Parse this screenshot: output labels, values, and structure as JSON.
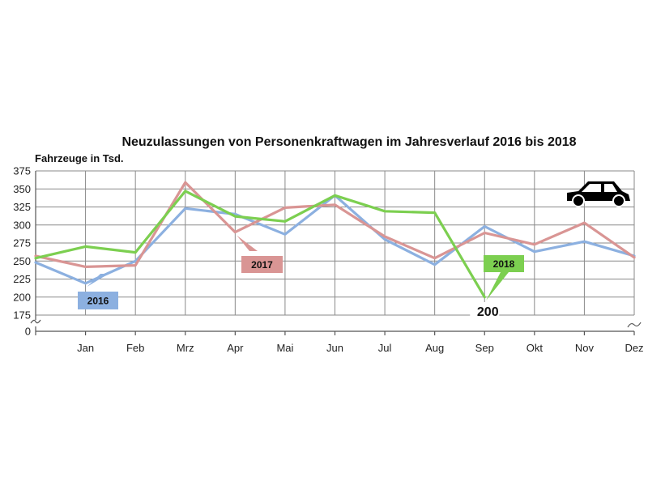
{
  "chart_data": {
    "type": "line",
    "title": "Neuzulassungen von Personenkraftwagen im Jahresverlauf 2016 bis 2018",
    "ylabel": "Fahrzeuge in Tsd.",
    "xlabel": "",
    "categories": [
      "",
      "Jan",
      "Feb",
      "Mrz",
      "Apr",
      "Mai",
      "Jun",
      "Jul",
      "Aug",
      "Sep",
      "Okt",
      "Nov",
      "Dez"
    ],
    "yticks": [
      0,
      175,
      200,
      225,
      250,
      275,
      300,
      325,
      350,
      375
    ],
    "ytick_labels": [
      "0",
      "175",
      "200",
      "225",
      "250",
      "275",
      "300",
      "325",
      "350",
      "375"
    ],
    "ylim": [
      175,
      375
    ],
    "axis_break": true,
    "grid": "vertical and horizontal",
    "series": [
      {
        "name": "2016",
        "color": "#8cb0e0",
        "values": [
          248,
          219,
          250,
          323,
          315,
          287,
          341,
          280,
          245,
          298,
          263,
          277,
          257
        ]
      },
      {
        "name": "2017",
        "color": "#d99594",
        "values": [
          257,
          242,
          244,
          359,
          290,
          324,
          328,
          284,
          254,
          289,
          273,
          303,
          255
        ]
      },
      {
        "name": "2018",
        "color": "#7ccf50",
        "values": [
          254,
          270,
          262,
          347,
          312,
          305,
          341,
          319,
          317,
          200,
          null,
          null,
          null
        ]
      }
    ],
    "annotations": [
      {
        "text": "200",
        "series": "2018",
        "category": "Sep"
      }
    ],
    "icon": "car-icon"
  }
}
